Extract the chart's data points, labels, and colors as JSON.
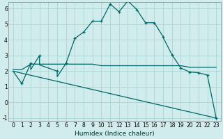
{
  "xlabel": "Humidex (Indice chaleur)",
  "bg_color": "#d0ecec",
  "grid_color": "#b0d8d8",
  "line_color": "#006666",
  "xlim": [
    -0.5,
    23.5
  ],
  "ylim": [
    -1.2,
    6.4
  ],
  "xticks": [
    0,
    1,
    2,
    3,
    4,
    5,
    6,
    7,
    8,
    9,
    10,
    11,
    12,
    13,
    14,
    15,
    16,
    17,
    18,
    19,
    20,
    21,
    22,
    23
  ],
  "yticks": [
    -1,
    0,
    1,
    2,
    3,
    4,
    5,
    6
  ],
  "curve1_x": [
    0,
    1,
    2,
    2,
    3,
    3,
    4,
    5,
    5,
    6,
    7,
    8,
    9,
    10,
    11,
    12,
    13,
    14,
    15,
    16,
    17,
    17,
    18,
    19,
    20,
    21,
    22,
    23
  ],
  "curve1_y": [
    2.0,
    1.2,
    2.5,
    2.1,
    3.0,
    2.4,
    2.2,
    2.0,
    1.65,
    2.5,
    4.1,
    4.5,
    5.2,
    5.2,
    6.3,
    5.8,
    6.5,
    5.95,
    5.1,
    5.1,
    4.2,
    4.15,
    3.05,
    2.2,
    1.95,
    1.9,
    1.75,
    -1.0
  ],
  "curve1_markers_x": [
    1,
    2,
    3,
    5,
    6,
    7,
    8,
    9,
    10,
    11,
    12,
    13,
    14,
    15,
    16,
    17,
    18,
    19,
    20,
    21,
    22,
    23
  ],
  "curve1_markers_y": [
    1.2,
    2.5,
    3.0,
    2.0,
    2.5,
    4.1,
    4.5,
    5.2,
    5.2,
    6.3,
    5.8,
    6.5,
    5.95,
    5.1,
    5.1,
    4.2,
    3.05,
    2.2,
    1.95,
    1.9,
    1.75,
    -1.0
  ],
  "curve2_x": [
    0,
    1,
    2,
    3,
    4,
    5,
    6,
    7,
    8,
    9,
    10,
    11,
    12,
    13,
    14,
    15,
    16,
    17,
    18,
    19,
    20,
    21,
    22,
    23
  ],
  "curve2_y": [
    2.1,
    2.1,
    2.45,
    2.45,
    2.45,
    2.45,
    2.45,
    2.45,
    2.45,
    2.45,
    2.35,
    2.35,
    2.35,
    2.35,
    2.35,
    2.35,
    2.35,
    2.35,
    2.35,
    2.35,
    2.25,
    2.25,
    2.25,
    2.25
  ],
  "curve3_x": [
    0,
    23
  ],
  "curve3_y": [
    2.0,
    -1.0
  ]
}
